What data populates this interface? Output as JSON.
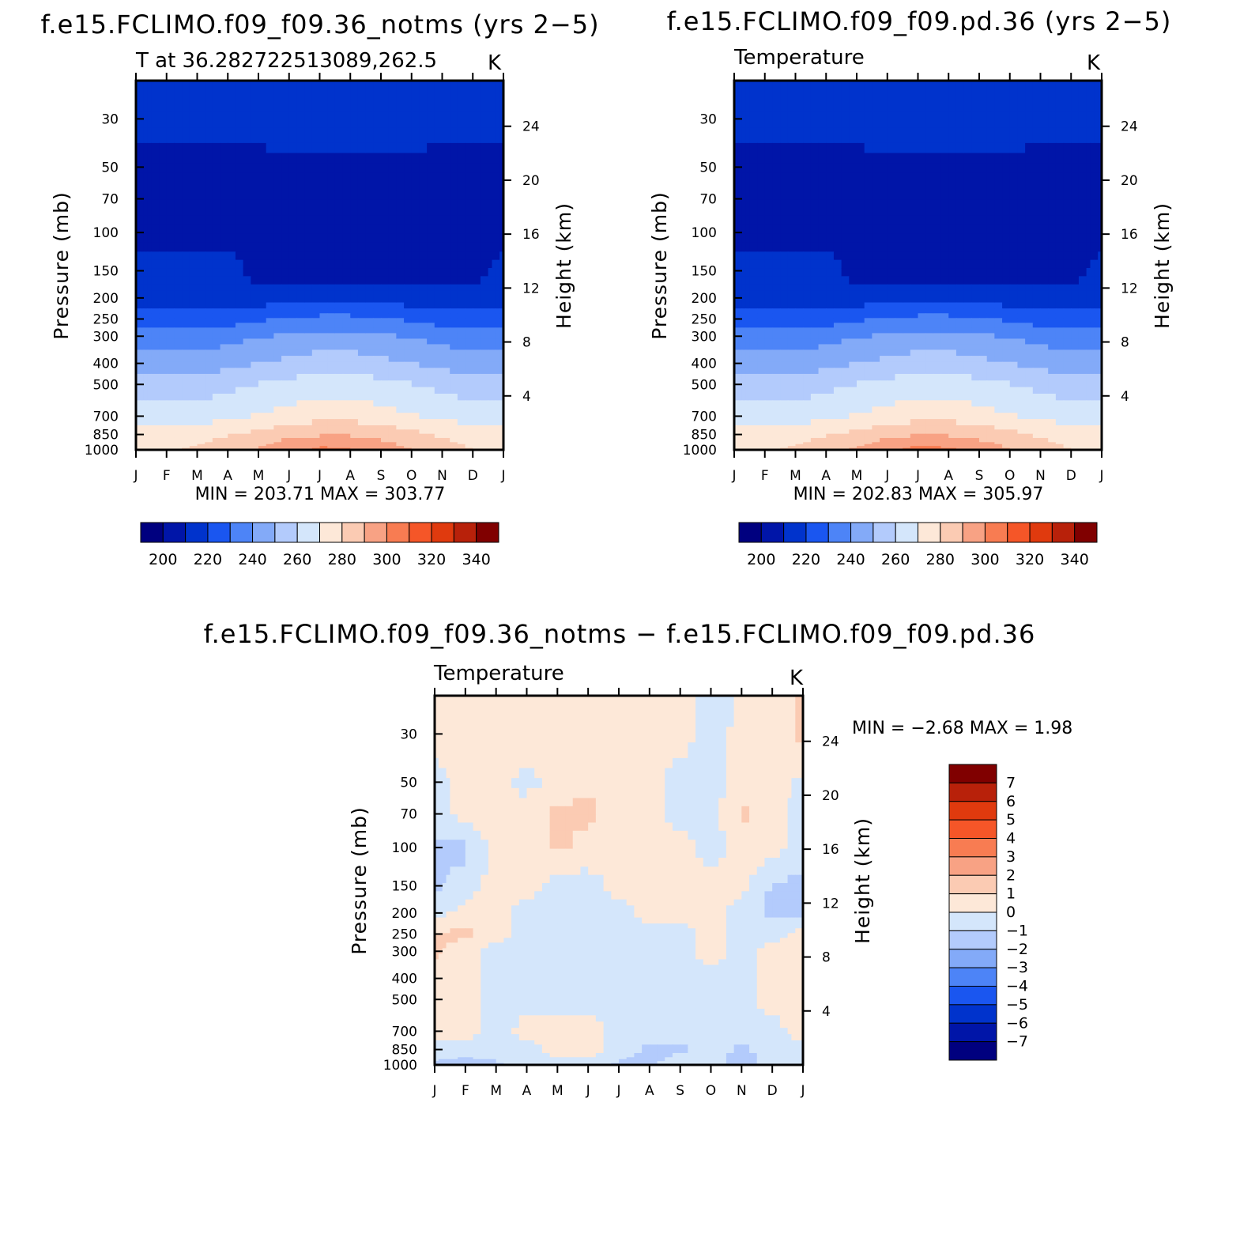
{
  "panels": [
    {
      "title": "f.e15.FCLIMO.f09_f09.36_notms (yrs 2−5)",
      "left_string": "T at 36.282722513089,262.5",
      "right_string": "K",
      "stats": "MIN = 203.71  MAX = 303.77",
      "pressure_label": "Pressure (mb)",
      "height_label": "Height (km)"
    },
    {
      "title": "f.e15.FCLIMO.f09_f09.pd.36 (yrs 2−5)",
      "left_string": "Temperature",
      "right_string": "K",
      "stats": "MIN = 202.83  MAX = 305.97",
      "pressure_label": "Pressure (mb)",
      "height_label": "Height (km)"
    },
    {
      "title": "f.e15.FCLIMO.f09_f09.36_notms − f.e15.FCLIMO.f09_f09.pd.36",
      "left_string": "Temperature",
      "right_string": "K",
      "stats": "MIN =   −2.68 MAX =    1.98",
      "pressure_label": "Pressure (mb)",
      "height_label": "Height (km)"
    }
  ],
  "chart_data": [
    {
      "type": "contour",
      "title": "f.e15.FCLIMO.f09_f09.36_notms (yrs 2−5)",
      "months": [
        "J",
        "F",
        "M",
        "A",
        "M",
        "J",
        "J",
        "A",
        "S",
        "O",
        "N",
        "D",
        "J"
      ],
      "pressure_ticks": [
        30,
        50,
        70,
        100,
        150,
        200,
        250,
        300,
        400,
        500,
        700,
        850,
        1000
      ],
      "height_ticks": [
        4,
        8,
        12,
        16,
        20,
        24
      ],
      "min": 203.71,
      "max": 303.77,
      "levels": [
        190,
        200,
        210,
        220,
        230,
        240,
        250,
        260,
        270,
        280,
        290,
        300,
        310,
        320,
        330,
        340,
        350
      ],
      "values_K": [
        [
          215,
          215,
          215,
          215,
          215,
          218,
          218,
          218,
          218,
          215,
          215,
          215,
          215
        ],
        [
          205,
          205,
          205,
          205,
          205,
          208,
          208,
          208,
          208,
          208,
          205,
          205,
          205
        ],
        [
          205,
          205,
          205,
          205,
          205,
          206,
          207,
          207,
          207,
          207,
          205,
          205,
          205
        ],
        [
          205,
          205,
          205,
          205,
          205,
          205,
          205,
          205,
          205,
          205,
          205,
          205,
          205
        ],
        [
          215,
          215,
          215,
          215,
          205,
          205,
          205,
          205,
          205,
          205,
          205,
          205,
          215
        ],
        [
          215,
          215,
          215,
          215,
          215,
          215,
          215,
          215,
          215,
          215,
          215,
          215,
          215
        ],
        [
          225,
          225,
          225,
          225,
          228,
          231,
          233,
          233,
          231,
          228,
          225,
          225,
          225
        ],
        [
          235,
          235,
          235,
          236,
          239,
          241,
          243,
          243,
          241,
          239,
          236,
          235,
          235
        ],
        [
          245,
          245,
          245,
          247,
          250,
          253,
          255,
          255,
          253,
          250,
          247,
          245,
          245
        ],
        [
          255,
          255,
          255,
          257,
          260,
          263,
          265,
          265,
          263,
          260,
          257,
          255,
          255
        ],
        [
          265,
          265,
          265,
          267,
          271,
          274,
          277,
          277,
          274,
          271,
          267,
          265,
          265
        ],
        [
          275,
          275,
          276,
          279,
          283,
          287,
          289,
          289,
          287,
          283,
          279,
          276,
          275
        ],
        [
          278,
          278,
          282,
          286,
          291,
          297,
          303,
          301,
          296,
          290,
          284,
          280,
          278
        ]
      ],
      "colorbar_labels": [
        "200",
        "220",
        "240",
        "260",
        "280",
        "300",
        "320",
        "340"
      ]
    },
    {
      "type": "contour",
      "title": "f.e15.FCLIMO.f09_f09.pd.36 (yrs 2−5)",
      "months": [
        "J",
        "F",
        "M",
        "A",
        "M",
        "J",
        "J",
        "A",
        "S",
        "O",
        "N",
        "D",
        "J"
      ],
      "pressure_ticks": [
        30,
        50,
        70,
        100,
        150,
        200,
        250,
        300,
        400,
        500,
        700,
        850,
        1000
      ],
      "height_ticks": [
        4,
        8,
        12,
        16,
        20,
        24
      ],
      "min": 202.83,
      "max": 305.97,
      "levels": [
        190,
        200,
        210,
        220,
        230,
        240,
        250,
        260,
        270,
        280,
        290,
        300,
        310,
        320,
        330,
        340,
        350
      ],
      "values_K": [
        [
          215,
          215,
          215,
          215,
          215,
          218,
          218,
          218,
          218,
          215,
          215,
          215,
          215
        ],
        [
          205,
          205,
          205,
          205,
          205,
          208,
          208,
          208,
          208,
          208,
          205,
          205,
          205
        ],
        [
          205,
          205,
          205,
          205,
          205,
          206,
          207,
          207,
          207,
          207,
          205,
          205,
          205
        ],
        [
          205,
          205,
          205,
          205,
          205,
          205,
          205,
          205,
          205,
          205,
          205,
          205,
          205
        ],
        [
          215,
          215,
          215,
          215,
          205,
          205,
          205,
          205,
          205,
          205,
          205,
          205,
          215
        ],
        [
          215,
          215,
          215,
          215,
          215,
          215,
          215,
          215,
          215,
          215,
          215,
          215,
          215
        ],
        [
          225,
          225,
          225,
          225,
          228,
          231,
          233,
          233,
          231,
          228,
          225,
          225,
          225
        ],
        [
          235,
          235,
          235,
          236,
          239,
          241,
          243,
          243,
          241,
          239,
          236,
          235,
          235
        ],
        [
          245,
          245,
          245,
          247,
          250,
          253,
          255,
          255,
          253,
          250,
          247,
          245,
          245
        ],
        [
          255,
          255,
          255,
          257,
          260,
          263,
          265,
          265,
          263,
          260,
          257,
          255,
          255
        ],
        [
          265,
          265,
          265,
          267,
          271,
          274,
          277,
          277,
          274,
          271,
          267,
          265,
          265
        ],
        [
          275,
          275,
          276,
          279,
          283,
          287,
          289,
          289,
          287,
          283,
          279,
          276,
          275
        ],
        [
          278,
          279,
          282,
          286,
          292,
          298,
          305,
          302,
          297,
          290,
          284,
          280,
          278
        ]
      ],
      "colorbar_labels": [
        "200",
        "220",
        "240",
        "260",
        "280",
        "300",
        "320",
        "340"
      ]
    },
    {
      "type": "contour",
      "title": "f.e15.FCLIMO.f09_f09.36_notms − f.e15.FCLIMO.f09_f09.pd.36",
      "months": [
        "J",
        "F",
        "M",
        "A",
        "M",
        "J",
        "J",
        "A",
        "S",
        "O",
        "N",
        "D",
        "J"
      ],
      "pressure_ticks": [
        30,
        50,
        70,
        100,
        150,
        200,
        250,
        300,
        400,
        500,
        700,
        850,
        1000
      ],
      "height_ticks": [
        4,
        8,
        12,
        16,
        20,
        24
      ],
      "min": -2.68,
      "max": 1.98,
      "levels": [
        -8,
        -7,
        -6,
        -5,
        -4,
        -3,
        -2,
        -1,
        0,
        1,
        2,
        3,
        4,
        5,
        6,
        7,
        8
      ],
      "values_K": [
        [
          0.5,
          0.5,
          0.5,
          0.5,
          0.5,
          0.5,
          0.5,
          0.2,
          0.4,
          -0.5,
          0.3,
          0.5,
          1.2
        ],
        [
          -0.4,
          0.5,
          0.5,
          -0.4,
          0.5,
          0.7,
          0.5,
          0.5,
          -0.5,
          -0.5,
          0.5,
          0.5,
          -0.3
        ],
        [
          -0.5,
          0.5,
          0.5,
          0.5,
          1.2,
          1.3,
          0.5,
          0.5,
          -0.5,
          -0.5,
          1.2,
          0.5,
          -0.5
        ],
        [
          -1.2,
          -1.3,
          0.5,
          0.5,
          1.2,
          0.6,
          0.5,
          0.5,
          0.5,
          -0.5,
          0.5,
          0.5,
          -0.6
        ],
        [
          -1.2,
          -0.6,
          0.5,
          0.5,
          -0.5,
          -0.5,
          0.5,
          0.5,
          0.5,
          0.5,
          0.5,
          -1.2,
          -1.2
        ],
        [
          -0.5,
          0.5,
          0.5,
          -0.5,
          -0.5,
          -0.5,
          -0.5,
          0.5,
          0.5,
          0.5,
          -0.5,
          -1.2,
          -1.2
        ],
        [
          1.2,
          1.2,
          0.5,
          -0.5,
          -0.5,
          -0.5,
          -0.5,
          -0.5,
          -0.5,
          0.5,
          -0.5,
          -0.5,
          0.5
        ],
        [
          1.2,
          0.5,
          -0.5,
          -0.5,
          -0.5,
          -0.5,
          -0.5,
          -0.5,
          -0.5,
          0.5,
          -0.5,
          0.5,
          0.5
        ],
        [
          0.5,
          0.5,
          -0.5,
          -0.5,
          -0.5,
          -0.5,
          -0.5,
          -0.5,
          -0.5,
          -0.5,
          -0.5,
          0.5,
          0.5
        ],
        [
          0.5,
          0.5,
          -0.5,
          -0.5,
          -0.5,
          -0.5,
          -0.5,
          -0.5,
          -0.5,
          -0.5,
          -0.5,
          0.5,
          0.5
        ],
        [
          0.6,
          0.5,
          -0.5,
          0.5,
          0.6,
          0.6,
          -0.5,
          -0.5,
          -0.5,
          -0.5,
          -0.5,
          -0.5,
          0.6
        ],
        [
          -0.5,
          -0.5,
          -0.5,
          -0.5,
          0.5,
          0.5,
          -0.5,
          -1.2,
          -1.2,
          -0.5,
          -1.2,
          -0.5,
          -0.5
        ],
        [
          -1.2,
          -1.5,
          -1.2,
          -0.5,
          -0.5,
          -0.5,
          -1.2,
          -1.2,
          -0.5,
          -0.5,
          -1.5,
          -0.5,
          -0.5
        ]
      ],
      "colorbar_labels": [
        "7",
        "6",
        "5",
        "4",
        "3",
        "2",
        "1",
        "0",
        "−1",
        "−2",
        "−3",
        "−4",
        "−5",
        "−6",
        "−7"
      ]
    }
  ],
  "palette": [
    "#00007f",
    "#0015a8",
    "#0033cc",
    "#1a56f0",
    "#4d84f7",
    "#83aaf8",
    "#b3cbfc",
    "#d4e6fb",
    "#fde8d8",
    "#fbcbb3",
    "#f8a284",
    "#f87c52",
    "#f55628",
    "#e03a0e",
    "#b8210a",
    "#800000"
  ]
}
